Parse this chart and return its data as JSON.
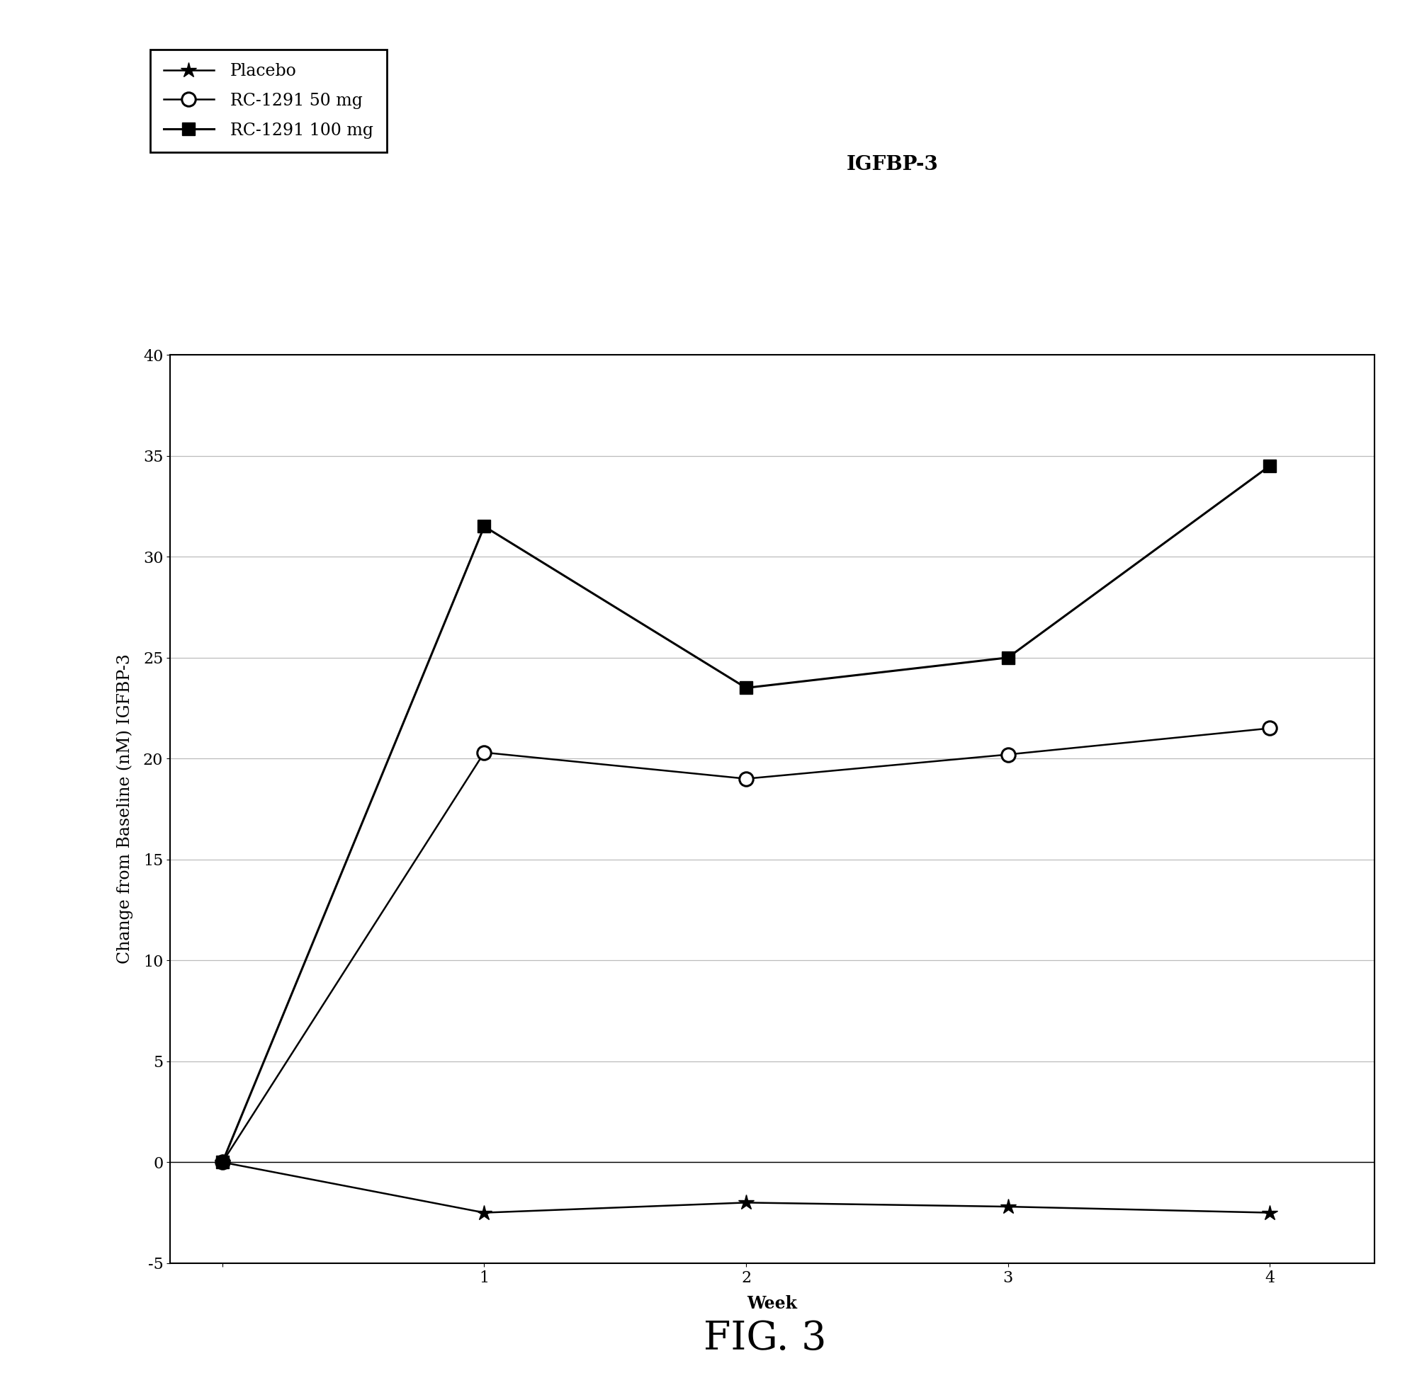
{
  "title": "IGFBP-3",
  "xlabel": "Week",
  "ylabel": "Change from Baseline (nM) IGFBP-3",
  "fig_label": "FIG. 3",
  "xlim": [
    -0.2,
    4.4
  ],
  "ylim": [
    -5,
    40
  ],
  "yticks": [
    -5,
    0,
    5,
    10,
    15,
    20,
    25,
    30,
    35,
    40
  ],
  "xticks": [
    0,
    1,
    2,
    3,
    4
  ],
  "series": {
    "placebo": {
      "label": "Placebo",
      "x": [
        0,
        1,
        2,
        3,
        4
      ],
      "y": [
        0,
        -2.5,
        -2.0,
        -2.2,
        -2.5
      ],
      "marker": "*",
      "color": "#000000",
      "markersize": 16,
      "linewidth": 1.8,
      "fillstyle": "full"
    },
    "rc50": {
      "label": "RC-1291 50 mg",
      "x": [
        0,
        1,
        2,
        3,
        4
      ],
      "y": [
        0,
        20.3,
        19.0,
        20.2,
        21.5
      ],
      "marker": "o",
      "color": "#000000",
      "markersize": 14,
      "linewidth": 1.8,
      "fillstyle": "none"
    },
    "rc100": {
      "label": "RC-1291 100 mg",
      "x": [
        0,
        1,
        2,
        3,
        4
      ],
      "y": [
        0,
        31.5,
        23.5,
        25.0,
        34.5
      ],
      "marker": "s",
      "color": "#000000",
      "markersize": 13,
      "linewidth": 2.2,
      "fillstyle": "full"
    }
  },
  "background_color": "#ffffff",
  "title_fontsize": 20,
  "label_fontsize": 17,
  "tick_fontsize": 16,
  "legend_fontsize": 17,
  "fig_label_fontsize": 40
}
